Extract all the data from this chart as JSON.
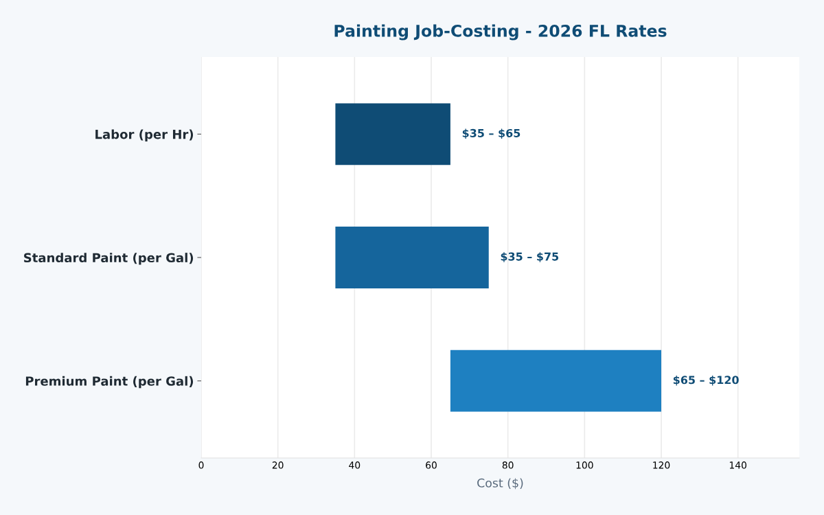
{
  "chart_data": {
    "type": "bar",
    "orientation": "horizontal",
    "title": "Painting Job-Costing - 2026 FL Rates",
    "xlabel": "Cost ($)",
    "categories": [
      "Labor (per Hr)",
      "Standard Paint (per Gal)",
      "Premium Paint (per Gal)"
    ],
    "base": [
      35,
      35,
      65
    ],
    "values": [
      30,
      40,
      55
    ],
    "colors": [
      "#0f4c75",
      "#15659c",
      "#1e80c1"
    ],
    "annotations": [
      {
        "text": "$35 – $65",
        "x": 65,
        "y": "Labor (per Hr)"
      },
      {
        "text": "$35 – $75",
        "x": 75,
        "y": "Standard Paint (per Gal)"
      },
      {
        "text": "$65 – $120",
        "x": 120,
        "y": "Premium Paint (per Gal)"
      }
    ],
    "xlim": [
      0,
      156
    ],
    "xticks": [
      0,
      20,
      40,
      60,
      80,
      100,
      120,
      140
    ],
    "grid": "x",
    "legend": false
  }
}
